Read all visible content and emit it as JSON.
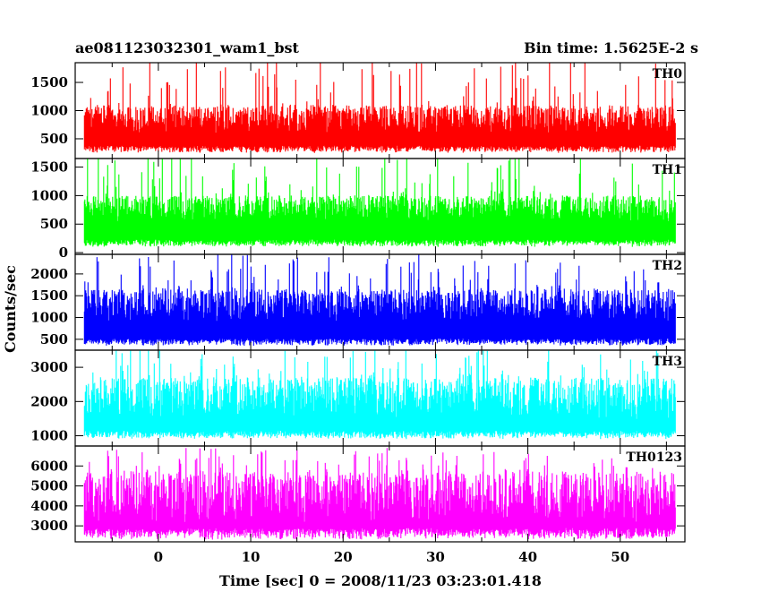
{
  "chart_data": {
    "type": "line",
    "title_left": "ae081123032301_wam1_bst",
    "title_right": "Bin time: 1.5625E-2 s",
    "xlabel": "Time [sec] 0 = 2008/11/23 03:23:01.418",
    "ylabel": "Counts/sec",
    "xlim": [
      -9,
      57
    ],
    "x_data_range": [
      -8,
      56
    ],
    "xticks": [
      0,
      10,
      20,
      30,
      40,
      50
    ],
    "grid": false,
    "panels": [
      {
        "name": "TH0",
        "color": "#ff0000",
        "ylim": [
          150,
          1850
        ],
        "yticks": [
          500,
          1000,
          1500
        ],
        "signal_min": 250,
        "signal_max": 1950,
        "typical_low": 380,
        "typical_high": 1100
      },
      {
        "name": "TH1",
        "color": "#00ff00",
        "ylim": [
          -30,
          1650
        ],
        "yticks": [
          0,
          500,
          1000,
          1500
        ],
        "signal_min": 100,
        "signal_max": 1750,
        "typical_low": 230,
        "typical_high": 1000
      },
      {
        "name": "TH2",
        "color": "#0000ff",
        "ylim": [
          250,
          2450
        ],
        "yticks": [
          500,
          1000,
          1500,
          2000
        ],
        "signal_min": 350,
        "signal_max": 2450,
        "typical_low": 520,
        "typical_high": 1650
      },
      {
        "name": "TH3",
        "color": "#00ffff",
        "ylim": [
          700,
          3500
        ],
        "yticks": [
          1000,
          2000,
          3000
        ],
        "signal_min": 900,
        "signal_max": 3600,
        "typical_low": 1150,
        "typical_high": 2700
      },
      {
        "name": "TH0123",
        "color": "#ff00ff",
        "ylim": [
          2200,
          7000
        ],
        "yticks": [
          3000,
          4000,
          5000,
          6000
        ],
        "signal_min": 2300,
        "signal_max": 6900,
        "typical_low": 2900,
        "typical_high": 5700
      }
    ]
  }
}
